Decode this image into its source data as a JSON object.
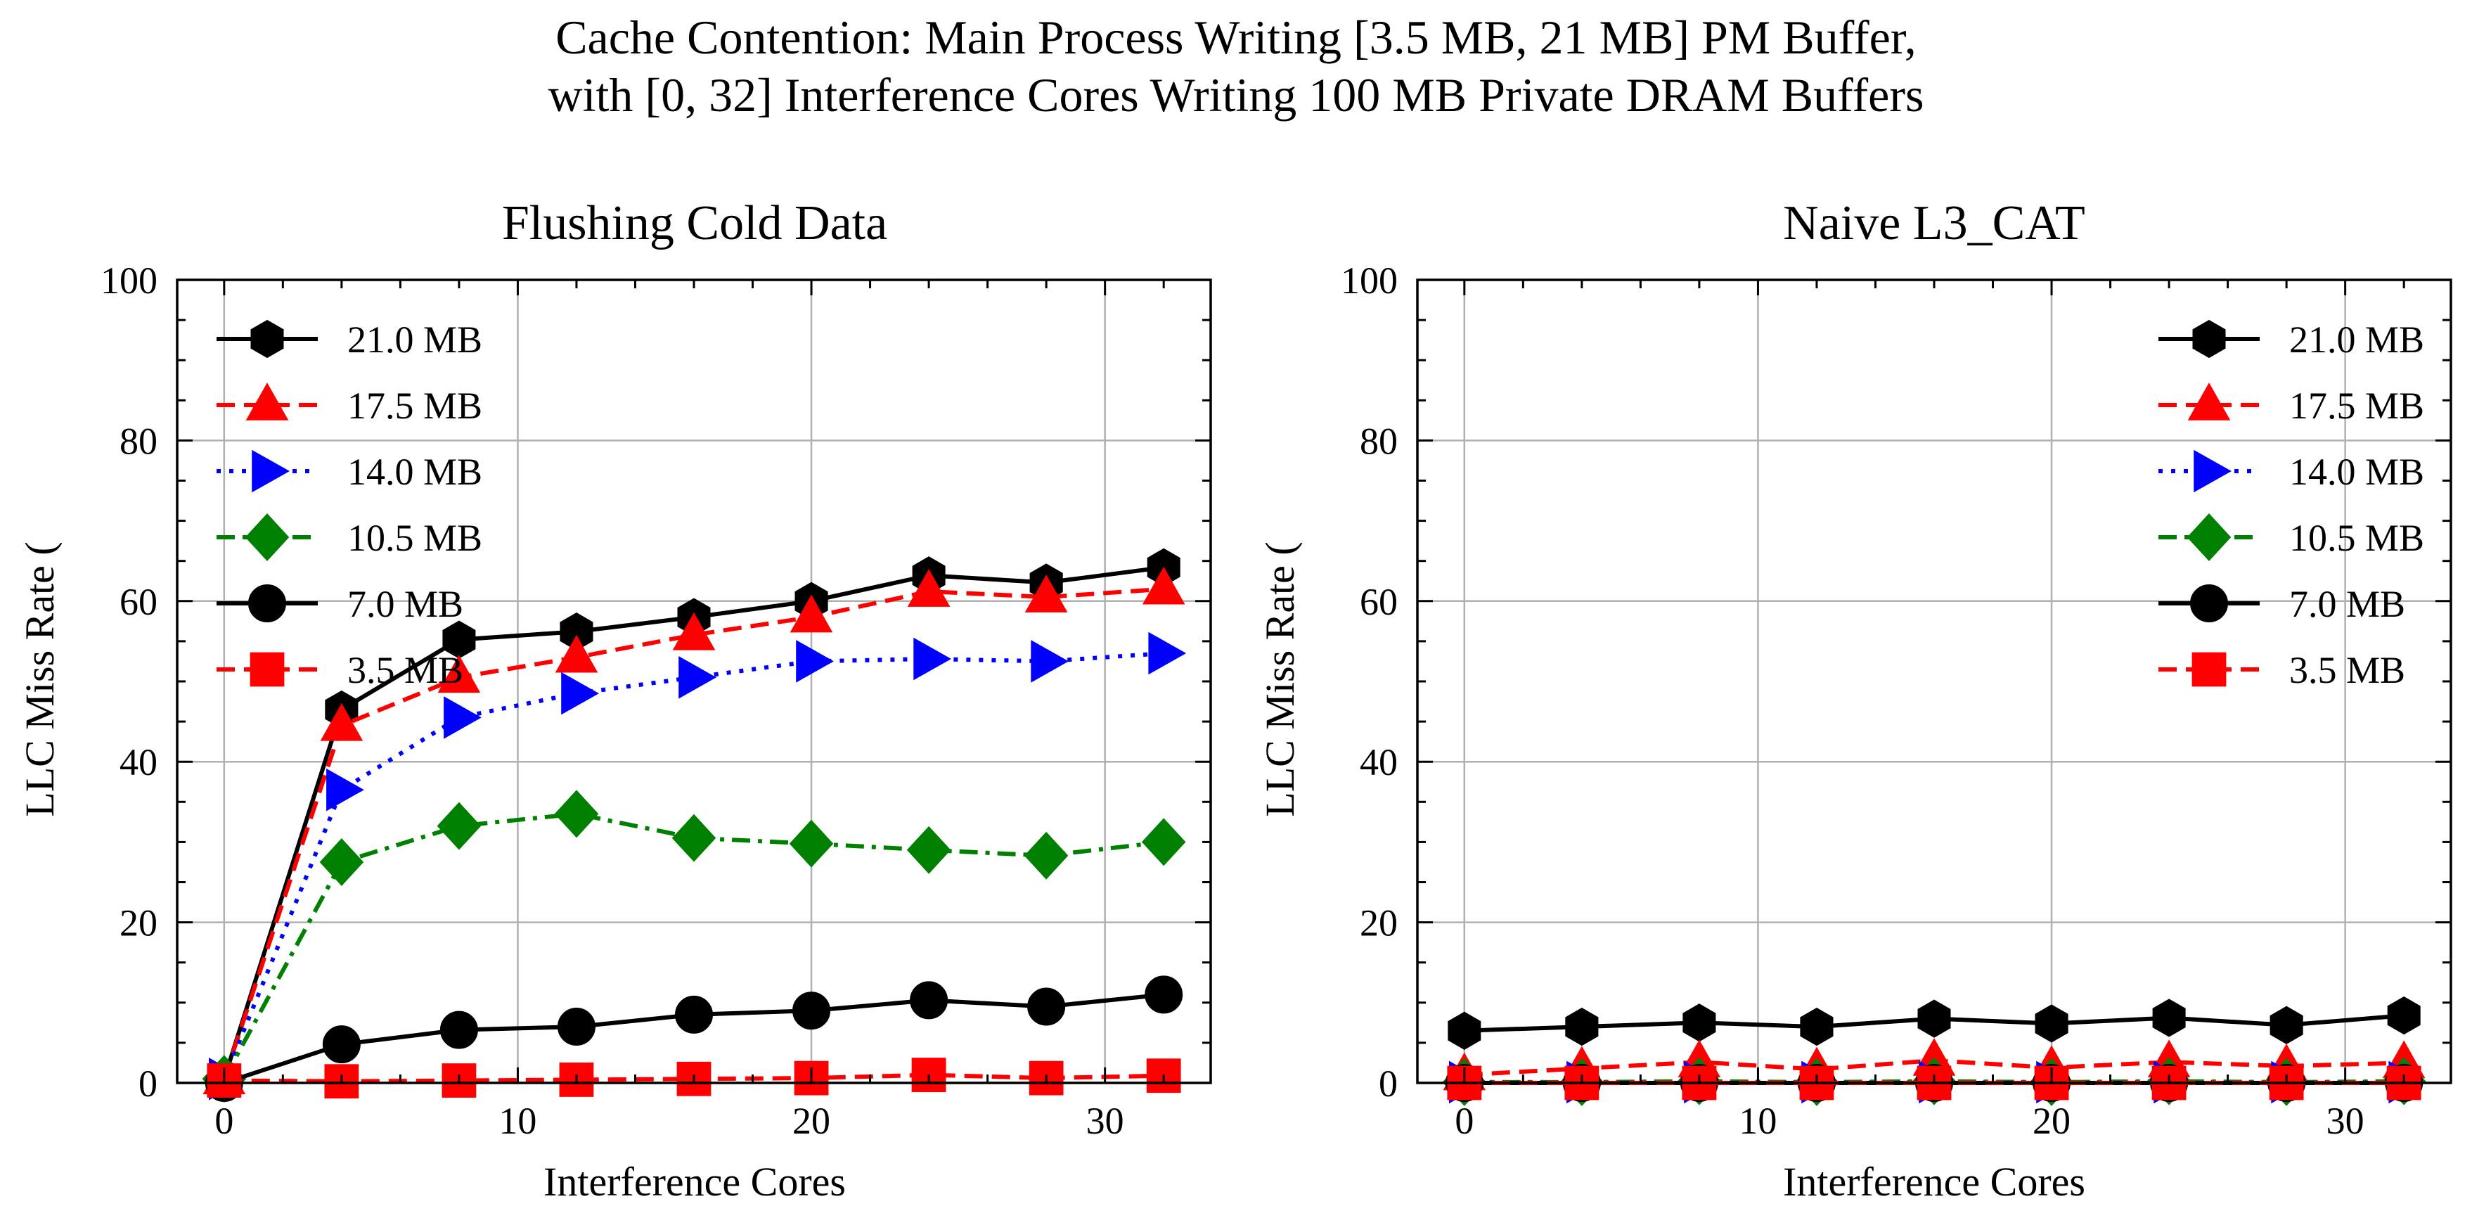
{
  "figure": {
    "title_line1": "Cache Contention: Main Process Writing [3.5 MB, 21 MB] PM Buffer,",
    "title_line2": "with [0, 32] Interference Cores Writing 100 MB Private DRAM Buffers"
  },
  "chart_data": [
    {
      "type": "line",
      "title": "Flushing Cold Data",
      "xlabel": "Interference Cores",
      "ylabel": "LLC Miss Rate (",
      "xlim": [
        -1.6,
        33.6
      ],
      "ylim": [
        0,
        100
      ],
      "xticks": [
        0,
        10,
        20,
        30
      ],
      "yticks": [
        0,
        20,
        40,
        60,
        80,
        100
      ],
      "grid": true,
      "legend_position": "upper-left",
      "x": [
        0,
        4,
        8,
        12,
        16,
        20,
        24,
        28,
        32
      ],
      "series": [
        {
          "name": "21.0 MB",
          "color": "#000000",
          "marker": "hexagon",
          "linestyle": "solid",
          "values": [
            0.5,
            46.5,
            55.2,
            56.2,
            58.0,
            60.0,
            63.2,
            62.3,
            64.2
          ]
        },
        {
          "name": "17.5 MB",
          "color": "#ff0000",
          "marker": "triangle-up",
          "linestyle": "dashed",
          "values": [
            0.5,
            44.5,
            50.5,
            53.0,
            55.8,
            58.0,
            61.2,
            60.5,
            61.5
          ]
        },
        {
          "name": "14.0 MB",
          "color": "#0000ff",
          "marker": "triangle-right",
          "linestyle": "dotted",
          "values": [
            0.5,
            36.5,
            45.5,
            48.5,
            50.5,
            52.5,
            52.8,
            52.5,
            53.5
          ]
        },
        {
          "name": "10.5 MB",
          "color": "#008000",
          "marker": "diamond",
          "linestyle": "dashdot",
          "values": [
            0.5,
            27.5,
            32.0,
            33.5,
            30.5,
            29.8,
            29.0,
            28.3,
            30.0
          ]
        },
        {
          "name": "7.0 MB",
          "color": "#000000",
          "marker": "circle",
          "linestyle": "solid",
          "values": [
            0.0,
            4.8,
            6.6,
            7.0,
            8.5,
            9.0,
            10.3,
            9.5,
            11.0
          ]
        },
        {
          "name": "3.5 MB",
          "color": "#ff0000",
          "marker": "square",
          "linestyle": "dashed",
          "values": [
            0.3,
            0.2,
            0.3,
            0.4,
            0.5,
            0.6,
            1.0,
            0.6,
            0.9
          ]
        }
      ]
    },
    {
      "type": "line",
      "title": "Naive L3_CAT",
      "xlabel": "Interference Cores",
      "ylabel": "LLC Miss Rate (",
      "xlim": [
        -1.6,
        33.6
      ],
      "ylim": [
        0,
        100
      ],
      "xticks": [
        0,
        10,
        20,
        30
      ],
      "yticks": [
        0,
        20,
        40,
        60,
        80,
        100
      ],
      "grid": true,
      "legend_position": "upper-right",
      "x": [
        0,
        4,
        8,
        12,
        16,
        20,
        24,
        28,
        32
      ],
      "series": [
        {
          "name": "21.0 MB",
          "color": "#000000",
          "marker": "hexagon",
          "linestyle": "solid",
          "values": [
            6.5,
            7.0,
            7.5,
            7.0,
            8.0,
            7.4,
            8.1,
            7.2,
            8.4
          ]
        },
        {
          "name": "17.5 MB",
          "color": "#ff0000",
          "marker": "triangle-up",
          "linestyle": "dashed",
          "values": [
            1.0,
            1.8,
            2.6,
            1.7,
            2.8,
            1.9,
            2.6,
            2.1,
            2.5
          ]
        },
        {
          "name": "14.0 MB",
          "color": "#0000ff",
          "marker": "triangle-right",
          "linestyle": "dotted",
          "values": [
            0.1,
            0.1,
            0.1,
            0.1,
            0.1,
            0.1,
            0.1,
            0.1,
            0.1
          ]
        },
        {
          "name": "10.5 MB",
          "color": "#008000",
          "marker": "diamond",
          "linestyle": "dashdot",
          "values": [
            0.1,
            0.1,
            0.2,
            0.1,
            0.2,
            0.1,
            0.2,
            0.1,
            0.2
          ]
        },
        {
          "name": "7.0 MB",
          "color": "#000000",
          "marker": "circle",
          "linestyle": "solid",
          "values": [
            0.0,
            0.0,
            0.0,
            0.0,
            0.0,
            0.0,
            0.0,
            0.0,
            0.0
          ]
        },
        {
          "name": "3.5 MB",
          "color": "#ff0000",
          "marker": "square",
          "linestyle": "dashed",
          "values": [
            0.0,
            0.0,
            0.0,
            0.0,
            0.0,
            0.0,
            0.0,
            0.0,
            0.0
          ]
        }
      ]
    }
  ]
}
